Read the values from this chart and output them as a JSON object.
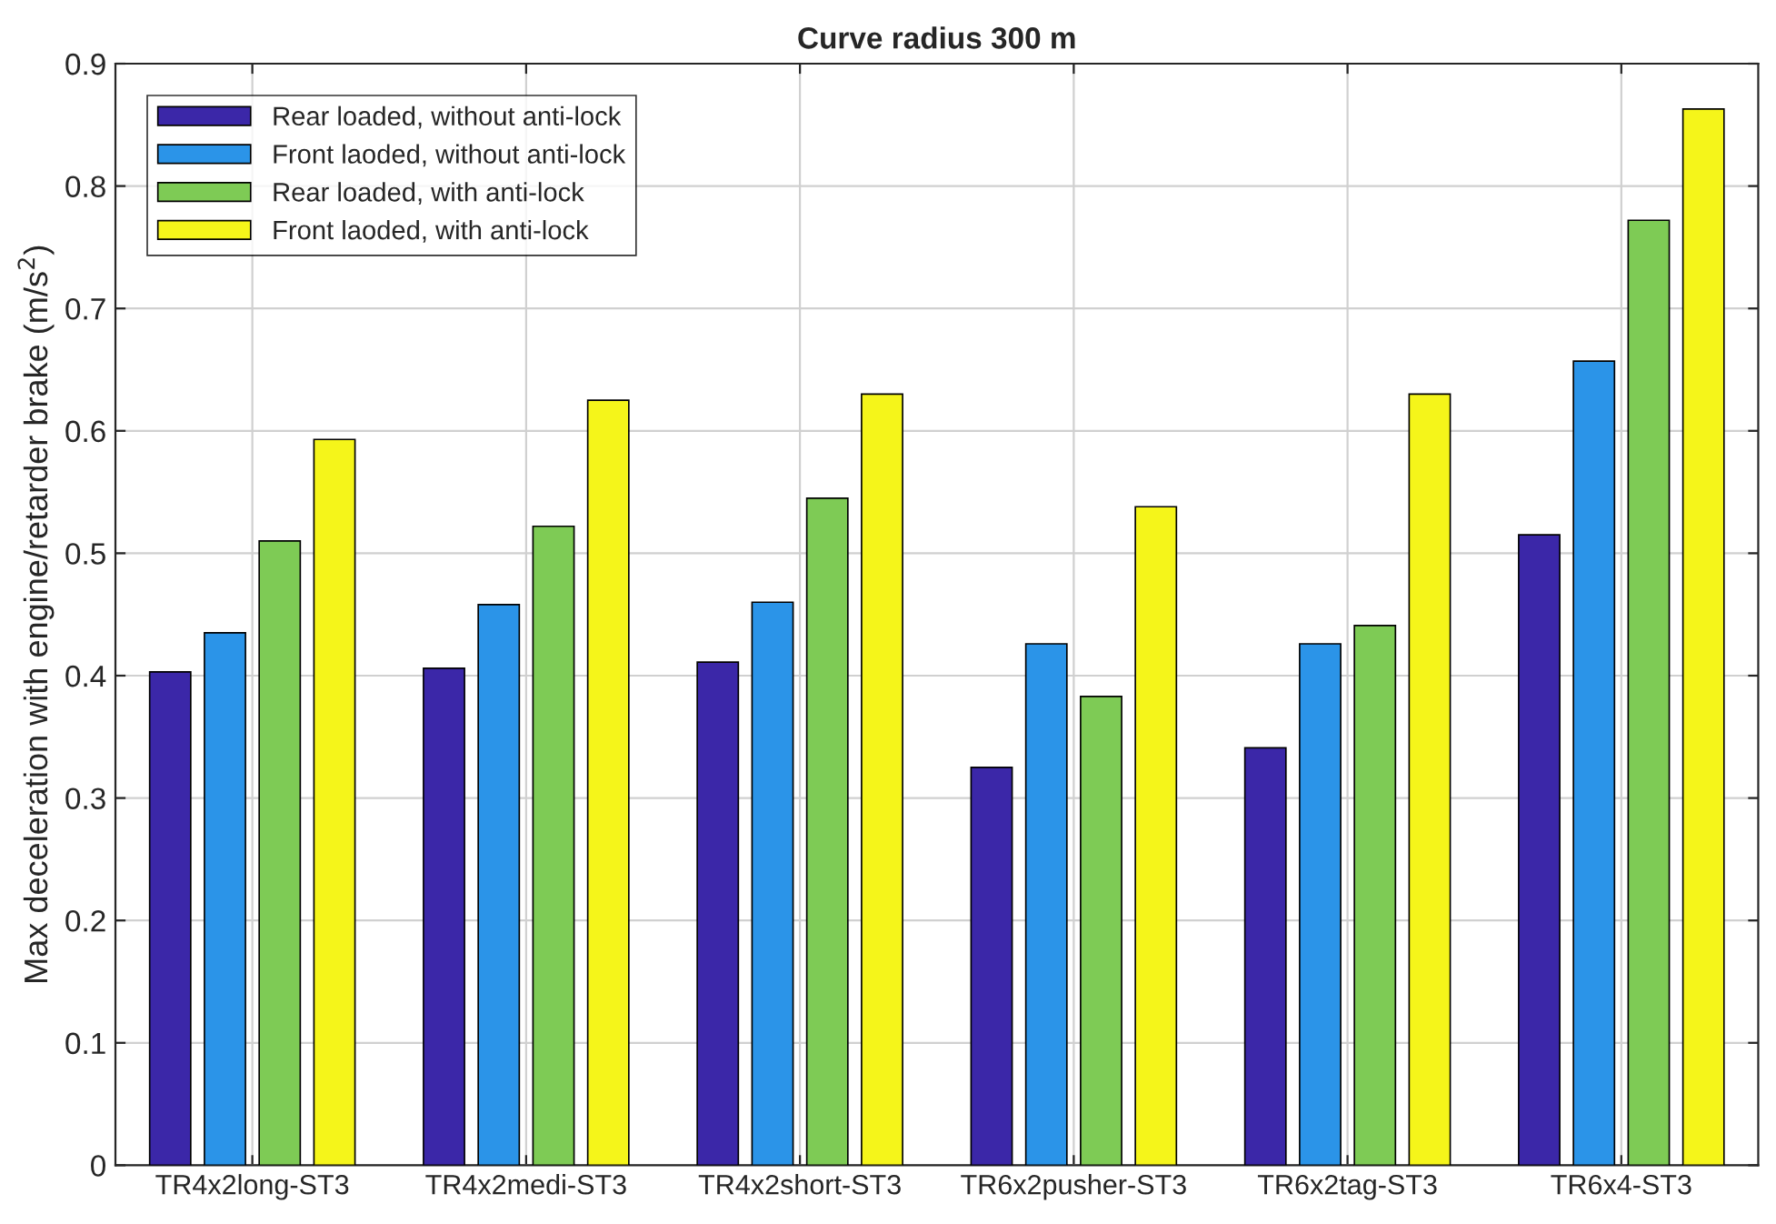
{
  "chart_data": {
    "type": "bar",
    "title": "Curve radius 300 m",
    "ylabel": "Max deceleration with engine/retarder brake (m/s$^{2}$)",
    "categories": [
      "TR4x2long-ST3",
      "TR4x2medi-ST3",
      "TR4x2short-ST3",
      "TR6x2pusher-ST3",
      "TR6x2tag-ST3",
      "TR6x4-ST3"
    ],
    "series": [
      {
        "name": "Rear loaded, without anti-lock",
        "color": "#3b27a8",
        "values": [
          0.403,
          0.406,
          0.411,
          0.325,
          0.341,
          0.515
        ]
      },
      {
        "name": "Front laoded, without anti-lock",
        "color": "#2b94e8",
        "values": [
          0.435,
          0.458,
          0.46,
          0.426,
          0.426,
          0.657
        ]
      },
      {
        "name": "Rear loaded, with anti-lock",
        "color": "#7ecb55",
        "values": [
          0.51,
          0.522,
          0.545,
          0.383,
          0.441,
          0.772
        ]
      },
      {
        "name": "Front laoded, with anti-lock",
        "color": "#f5f51a",
        "values": [
          0.593,
          0.625,
          0.63,
          0.538,
          0.63,
          0.863
        ]
      }
    ],
    "ylim": [
      0,
      0.9
    ],
    "yticks": [
      0,
      0.1,
      0.2,
      0.3,
      0.4,
      0.5,
      0.6,
      0.7,
      0.8,
      0.9
    ],
    "grid": true,
    "legend": "top left"
  }
}
